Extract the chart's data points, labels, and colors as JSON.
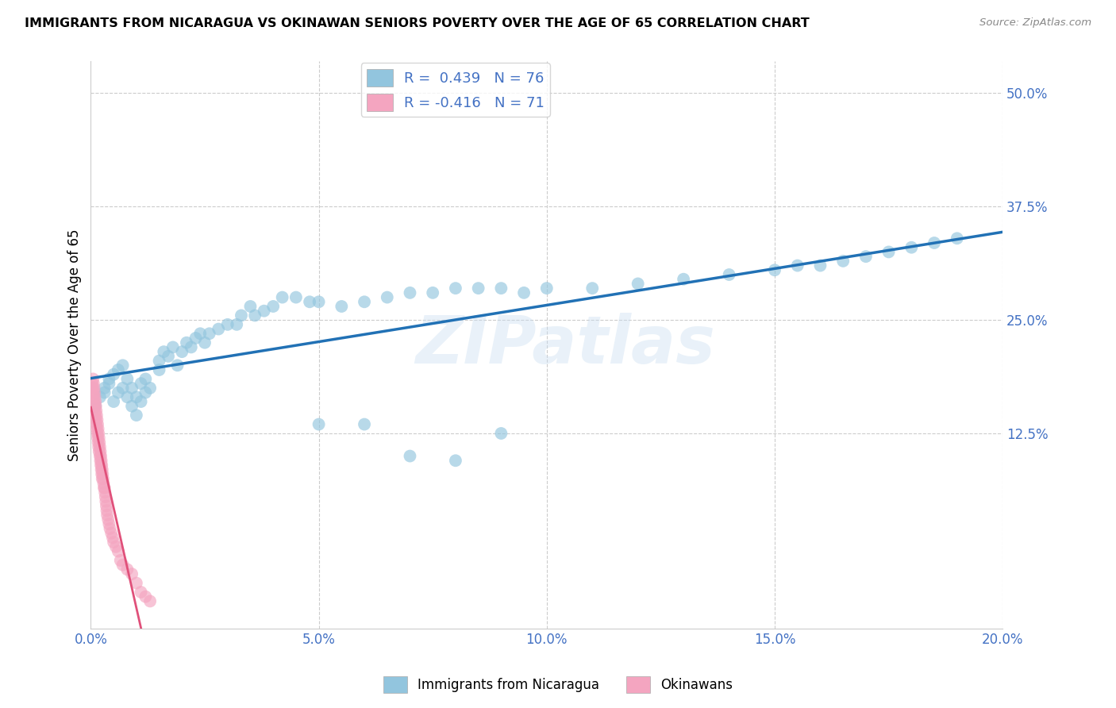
{
  "title": "IMMIGRANTS FROM NICARAGUA VS OKINAWAN SENIORS POVERTY OVER THE AGE OF 65 CORRELATION CHART",
  "source": "Source: ZipAtlas.com",
  "ylabel": "Seniors Poverty Over the Age of 65",
  "xlim": [
    0.0,
    0.2
  ],
  "ylim": [
    -0.09,
    0.535
  ],
  "ytick_vals": [
    0.125,
    0.25,
    0.375,
    0.5
  ],
  "xtick_vals": [
    0.0,
    0.05,
    0.1,
    0.15,
    0.2
  ],
  "legend_R1": "R =  0.439   N = 76",
  "legend_R2": "R = -0.416   N = 71",
  "blue_color": "#92c5de",
  "pink_color": "#f4a5c0",
  "blue_line_color": "#2171b5",
  "pink_line_color": "#e0507a",
  "pink_line_dash_color": "#f0b0c8",
  "watermark": "ZIPatlas",
  "label_blue": "Immigrants from Nicaragua",
  "label_pink": "Okinawans",
  "blue_scatter_x": [
    0.001,
    0.002,
    0.003,
    0.003,
    0.004,
    0.004,
    0.005,
    0.005,
    0.006,
    0.006,
    0.007,
    0.007,
    0.008,
    0.008,
    0.009,
    0.009,
    0.01,
    0.01,
    0.011,
    0.011,
    0.012,
    0.012,
    0.013,
    0.015,
    0.015,
    0.016,
    0.017,
    0.018,
    0.019,
    0.02,
    0.021,
    0.022,
    0.023,
    0.024,
    0.025,
    0.026,
    0.028,
    0.03,
    0.032,
    0.033,
    0.035,
    0.036,
    0.038,
    0.04,
    0.042,
    0.045,
    0.048,
    0.05,
    0.055,
    0.06,
    0.065,
    0.07,
    0.075,
    0.08,
    0.085,
    0.09,
    0.095,
    0.1,
    0.11,
    0.12,
    0.13,
    0.14,
    0.15,
    0.155,
    0.16,
    0.165,
    0.17,
    0.175,
    0.18,
    0.185,
    0.19,
    0.05,
    0.06,
    0.07,
    0.08,
    0.09
  ],
  "blue_scatter_y": [
    0.155,
    0.165,
    0.175,
    0.17,
    0.185,
    0.18,
    0.19,
    0.16,
    0.195,
    0.17,
    0.2,
    0.175,
    0.185,
    0.165,
    0.175,
    0.155,
    0.165,
    0.145,
    0.18,
    0.16,
    0.185,
    0.17,
    0.175,
    0.205,
    0.195,
    0.215,
    0.21,
    0.22,
    0.2,
    0.215,
    0.225,
    0.22,
    0.23,
    0.235,
    0.225,
    0.235,
    0.24,
    0.245,
    0.245,
    0.255,
    0.265,
    0.255,
    0.26,
    0.265,
    0.275,
    0.275,
    0.27,
    0.27,
    0.265,
    0.27,
    0.275,
    0.28,
    0.28,
    0.285,
    0.285,
    0.285,
    0.28,
    0.285,
    0.285,
    0.29,
    0.295,
    0.3,
    0.305,
    0.31,
    0.31,
    0.315,
    0.32,
    0.325,
    0.33,
    0.335,
    0.34,
    0.135,
    0.135,
    0.1,
    0.095,
    0.125
  ],
  "pink_scatter_x": [
    0.0002,
    0.0003,
    0.0004,
    0.0005,
    0.0005,
    0.0006,
    0.0006,
    0.0007,
    0.0007,
    0.0008,
    0.0008,
    0.0009,
    0.0009,
    0.001,
    0.001,
    0.0011,
    0.0011,
    0.0012,
    0.0012,
    0.0013,
    0.0013,
    0.0014,
    0.0014,
    0.0015,
    0.0015,
    0.0016,
    0.0016,
    0.0017,
    0.0017,
    0.0018,
    0.0018,
    0.0019,
    0.002,
    0.002,
    0.0021,
    0.0021,
    0.0022,
    0.0022,
    0.0023,
    0.0023,
    0.0024,
    0.0024,
    0.0025,
    0.0025,
    0.0026,
    0.0027,
    0.0028,
    0.0029,
    0.003,
    0.0031,
    0.0032,
    0.0033,
    0.0034,
    0.0035,
    0.0036,
    0.0038,
    0.004,
    0.0042,
    0.0045,
    0.0048,
    0.005,
    0.0055,
    0.006,
    0.0065,
    0.007,
    0.008,
    0.009,
    0.01,
    0.011,
    0.012,
    0.013
  ],
  "pink_scatter_y": [
    0.175,
    0.18,
    0.175,
    0.185,
    0.17,
    0.18,
    0.165,
    0.175,
    0.16,
    0.17,
    0.155,
    0.165,
    0.15,
    0.16,
    0.145,
    0.155,
    0.14,
    0.15,
    0.135,
    0.145,
    0.13,
    0.14,
    0.125,
    0.135,
    0.12,
    0.13,
    0.115,
    0.125,
    0.11,
    0.12,
    0.105,
    0.115,
    0.11,
    0.1,
    0.105,
    0.095,
    0.1,
    0.09,
    0.095,
    0.085,
    0.09,
    0.08,
    0.085,
    0.075,
    0.08,
    0.075,
    0.07,
    0.065,
    0.065,
    0.06,
    0.055,
    0.05,
    0.045,
    0.04,
    0.035,
    0.03,
    0.025,
    0.02,
    0.015,
    0.01,
    0.005,
    0.0,
    -0.005,
    -0.015,
    -0.02,
    -0.025,
    -0.03,
    -0.04,
    -0.05,
    -0.055,
    -0.06
  ]
}
